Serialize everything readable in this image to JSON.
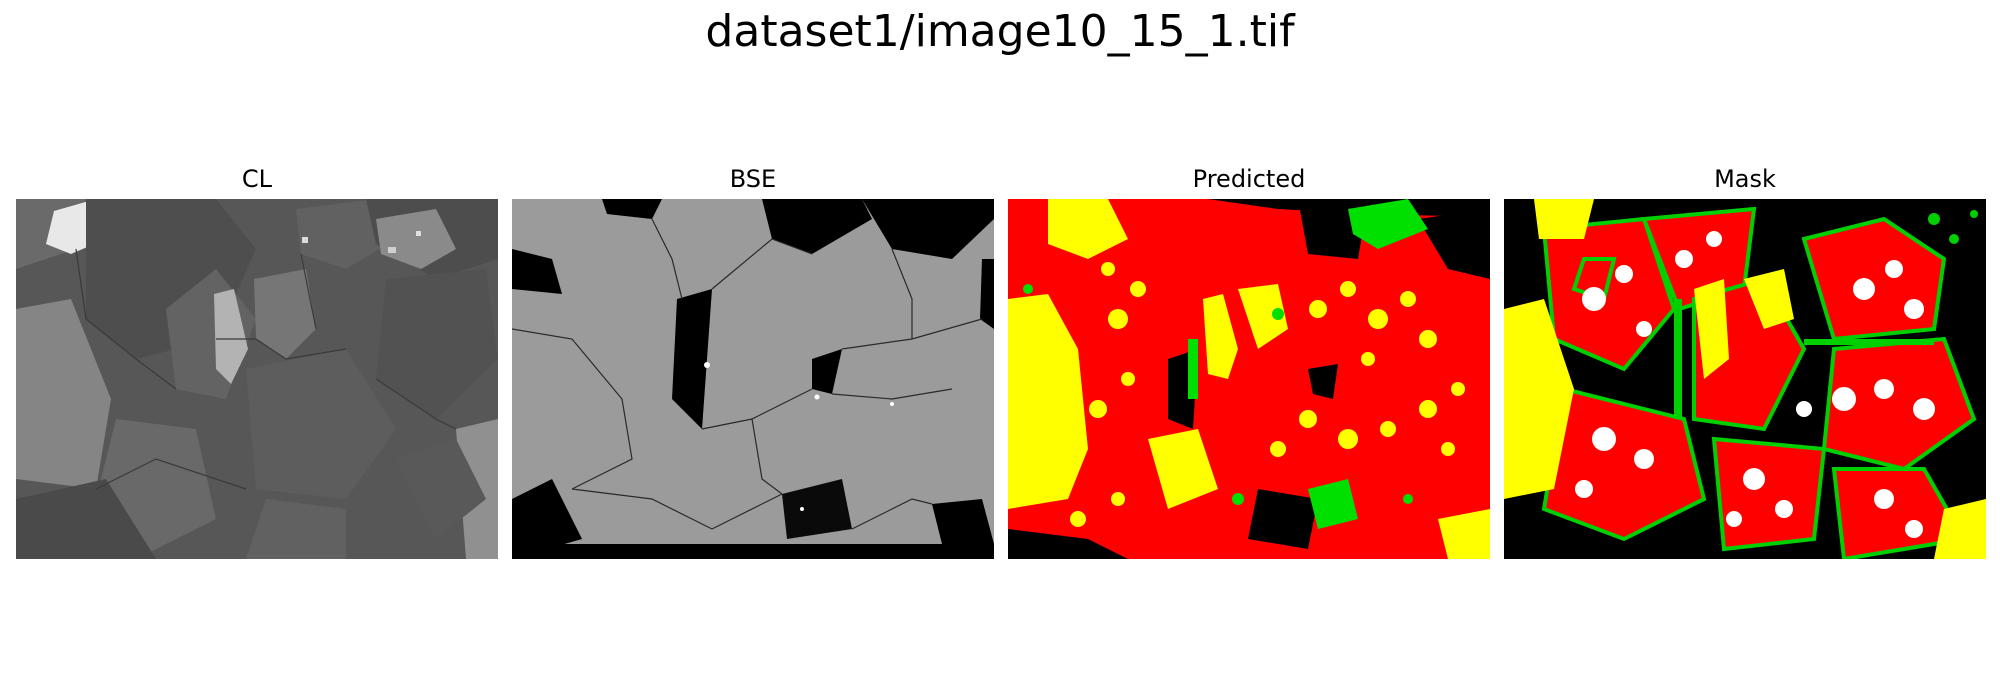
{
  "figure": {
    "title": "dataset1/image10_15_1.tif",
    "panels": [
      {
        "title": "CL",
        "kind": "grayscale-microscopy"
      },
      {
        "title": "BSE",
        "kind": "grayscale-microscopy"
      },
      {
        "title": "Predicted",
        "kind": "segmentation"
      },
      {
        "title": "Mask",
        "kind": "segmentation"
      }
    ],
    "colors": {
      "background": "#000000",
      "class_red": "#ff0000",
      "class_yellow": "#ffff00",
      "class_green": "#00e000",
      "class_white": "#ffffff",
      "cl_gray": "#5a5a5a",
      "bse_gray": "#9a9a9a"
    }
  }
}
